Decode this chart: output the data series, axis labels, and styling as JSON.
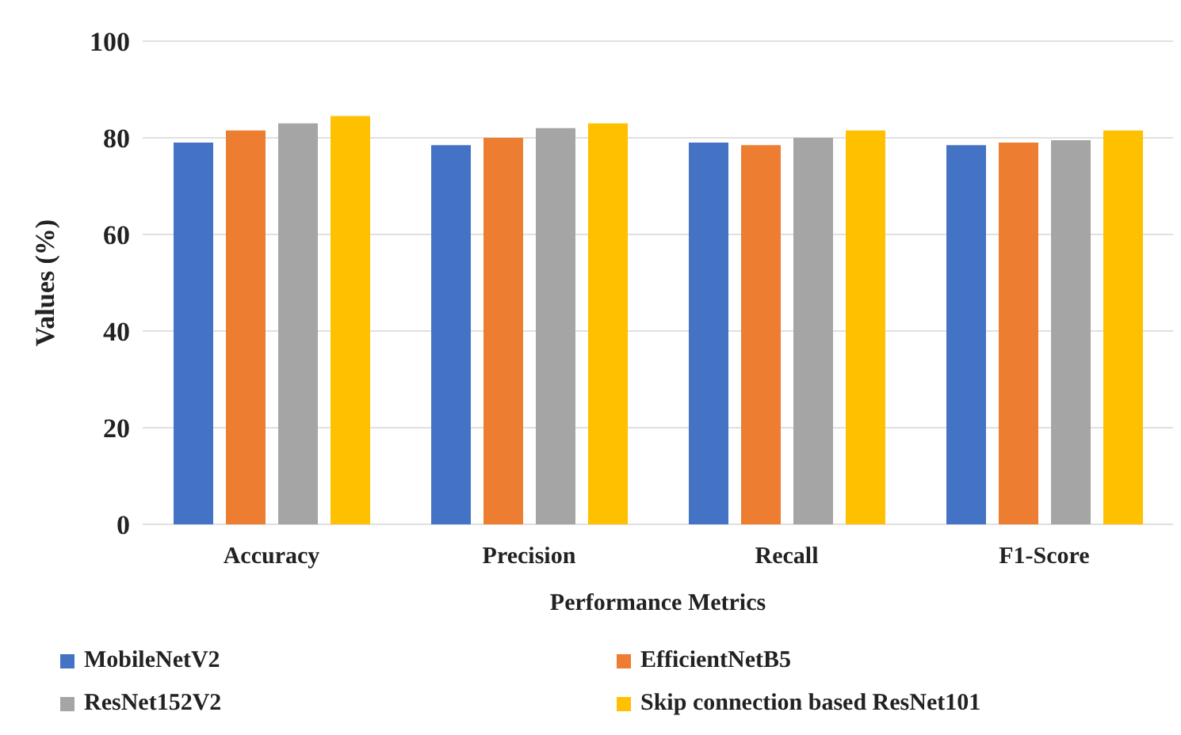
{
  "chart_data": {
    "type": "bar",
    "xlabel": "Performance Metrics",
    "ylabel": "Values (%)",
    "categories": [
      "Accuracy",
      "Precision",
      "Recall",
      "F1-Score"
    ],
    "series": [
      {
        "name": "MobileNetV2",
        "color": "#4472c4",
        "values": [
          79,
          78.5,
          79,
          78.5
        ]
      },
      {
        "name": "EfficientNetB5",
        "color": "#ed7d31",
        "values": [
          81.5,
          80,
          78.5,
          79
        ]
      },
      {
        "name": "ResNet152V2",
        "color": "#a5a5a5",
        "values": [
          83,
          82,
          80,
          79.5
        ]
      },
      {
        "name": "Skip connection based ResNet101",
        "color": "#ffc000",
        "values": [
          84.5,
          83,
          81.5,
          81.5
        ]
      }
    ],
    "ylim": [
      0,
      100
    ],
    "yticks": [
      0,
      20,
      40,
      60,
      80,
      100
    ],
    "grid": "y",
    "legend": "bottom"
  }
}
